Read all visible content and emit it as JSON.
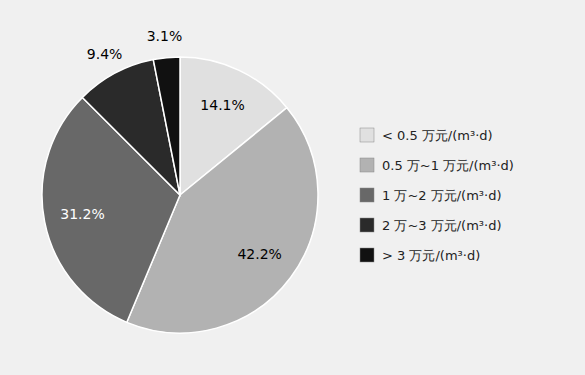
{
  "chart_data": {
    "type": "pie",
    "categories": [
      "< 0.5 万元/(m³·d)",
      "0.5 万~1 万元/(m³·d)",
      "1 万~2 万元/(m³·d)",
      "2 万~3 万元/(m³·d)",
      "> 3 万元/(m³·d)"
    ],
    "values": [
      14.1,
      42.2,
      31.2,
      9.4,
      3.1
    ],
    "value_labels": [
      "14.1%",
      "42.2%",
      "31.2%",
      "9.4%",
      "3.1%"
    ],
    "colors": [
      "#e0e0e0",
      "#b2b2b2",
      "#686868",
      "#2a2a2a",
      "#111111"
    ],
    "data_labels": true,
    "legend": "right"
  }
}
